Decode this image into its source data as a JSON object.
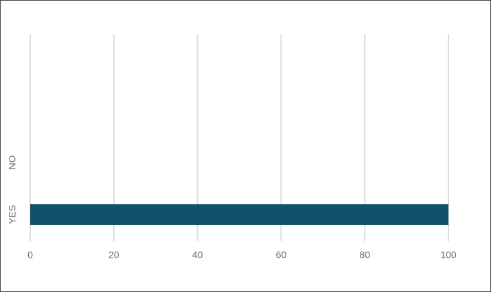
{
  "chart_data": {
    "type": "bar",
    "orientation": "horizontal",
    "categories": [
      "NO",
      "YES"
    ],
    "values": [
      0,
      100
    ],
    "color": "#13506b",
    "xlim": [
      0,
      100
    ],
    "xticks": [
      0,
      20,
      40,
      60,
      80,
      100
    ],
    "grid": true
  }
}
